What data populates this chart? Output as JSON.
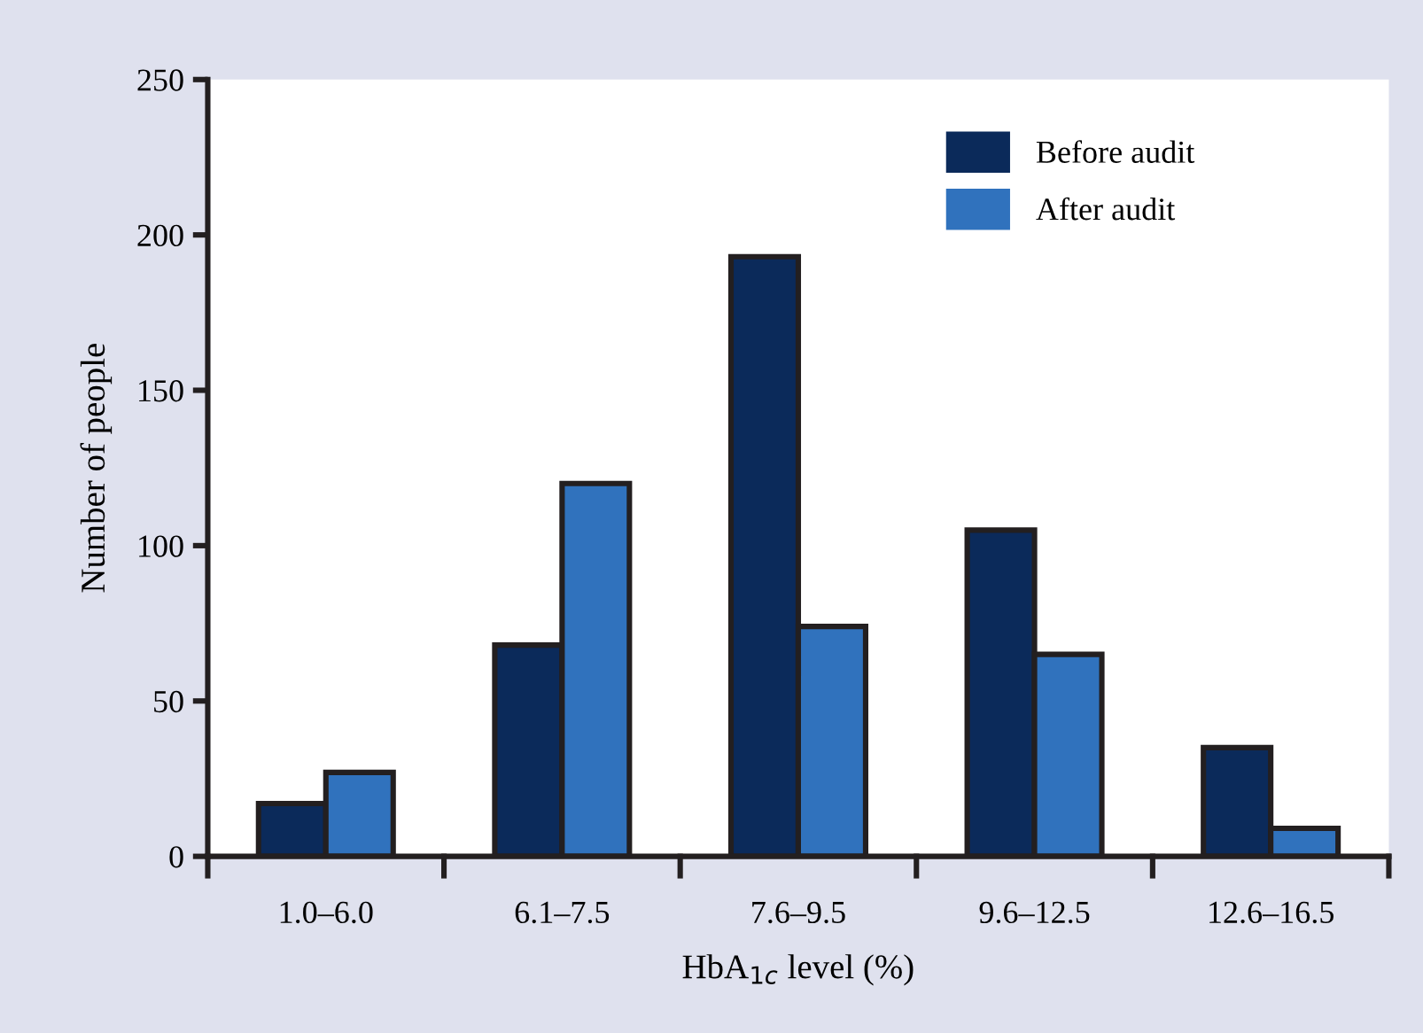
{
  "chart_data": {
    "type": "bar",
    "xlabel": "HbA$_{1c}$ level (%)",
    "ylabel": "Number of people",
    "categories": [
      "1.0–6.0",
      "6.1–7.5",
      "7.6–9.5",
      "9.6–12.5",
      "12.6–16.5"
    ],
    "series": [
      {
        "name": "Before audit",
        "color": "#0b2a5a",
        "values": [
          17,
          68,
          193,
          105,
          35
        ]
      },
      {
        "name": "After audit",
        "color": "#3072bd",
        "values": [
          27,
          120,
          74,
          65,
          9
        ]
      }
    ],
    "ylim": [
      0,
      250
    ],
    "yticks": [
      0,
      50,
      100,
      150,
      200,
      250
    ],
    "grid": false,
    "legend": "top right"
  }
}
